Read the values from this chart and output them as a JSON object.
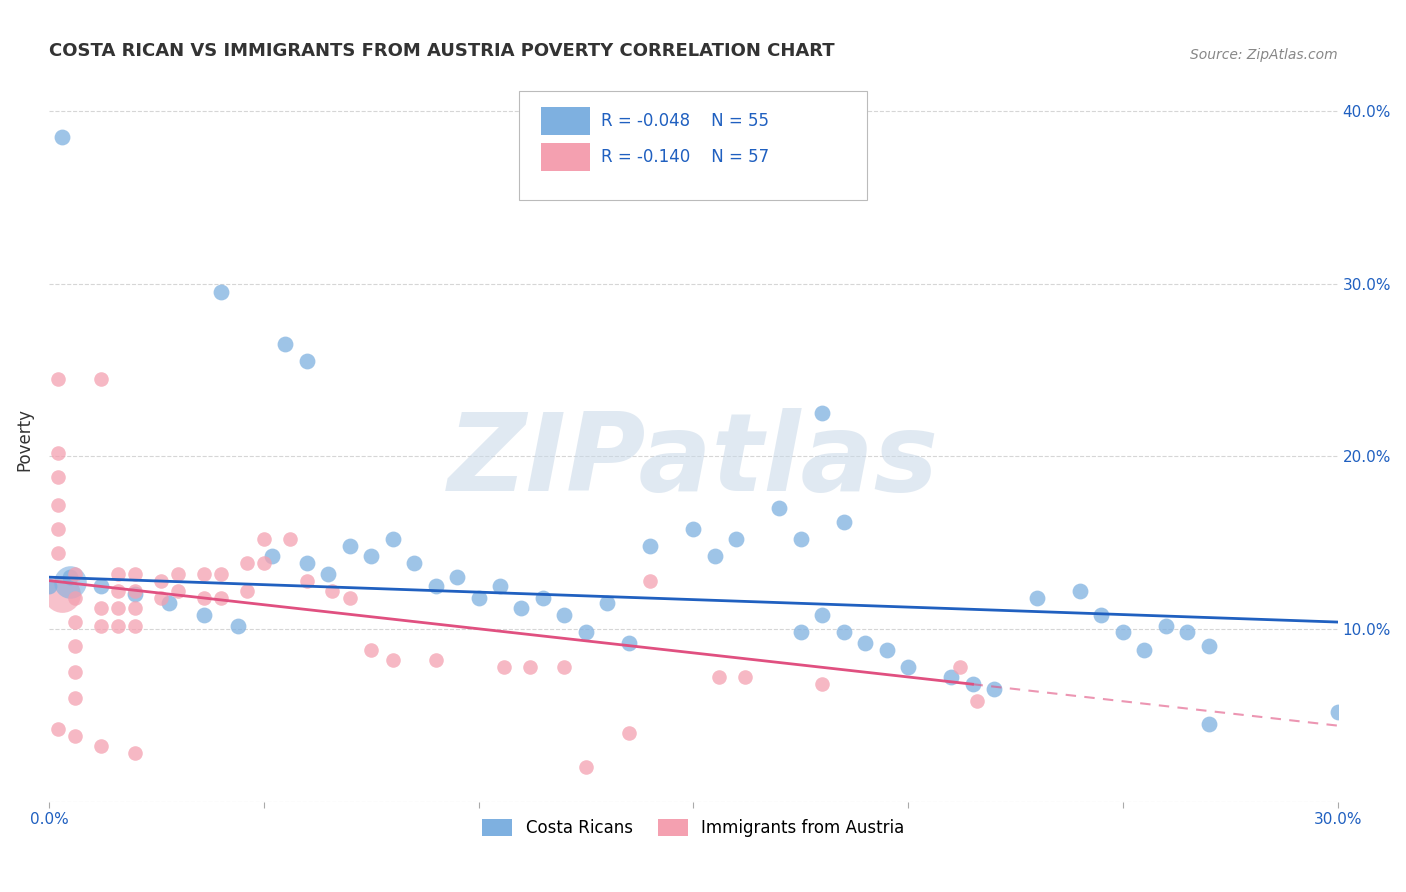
{
  "title": "COSTA RICAN VS IMMIGRANTS FROM AUSTRIA POVERTY CORRELATION CHART",
  "source": "Source: ZipAtlas.com",
  "ylabel": "Poverty",
  "xlim": [
    0.0,
    0.3
  ],
  "ylim": [
    0.0,
    0.42
  ],
  "blue_color": "#7EB0E0",
  "pink_color": "#F4A0B0",
  "blue_line_color": "#2060C0",
  "pink_line_color": "#E05080",
  "legend_label1": "Costa Ricans",
  "legend_label2": "Immigrants from Austria",
  "watermark": "ZIPatlas",
  "blue_scatter": [
    [
      0.003,
      0.385
    ],
    [
      0.04,
      0.295
    ],
    [
      0.055,
      0.265
    ],
    [
      0.06,
      0.255
    ],
    [
      0.005,
      0.13
    ],
    [
      0.012,
      0.125
    ],
    [
      0.02,
      0.12
    ],
    [
      0.028,
      0.115
    ],
    [
      0.036,
      0.108
    ],
    [
      0.044,
      0.102
    ],
    [
      0.052,
      0.142
    ],
    [
      0.06,
      0.138
    ],
    [
      0.065,
      0.132
    ],
    [
      0.07,
      0.148
    ],
    [
      0.075,
      0.142
    ],
    [
      0.08,
      0.152
    ],
    [
      0.085,
      0.138
    ],
    [
      0.09,
      0.125
    ],
    [
      0.095,
      0.13
    ],
    [
      0.1,
      0.118
    ],
    [
      0.105,
      0.125
    ],
    [
      0.11,
      0.112
    ],
    [
      0.115,
      0.118
    ],
    [
      0.12,
      0.108
    ],
    [
      0.13,
      0.115
    ],
    [
      0.14,
      0.148
    ],
    [
      0.15,
      0.158
    ],
    [
      0.155,
      0.142
    ],
    [
      0.16,
      0.152
    ],
    [
      0.17,
      0.17
    ],
    [
      0.175,
      0.152
    ],
    [
      0.18,
      0.225
    ],
    [
      0.185,
      0.162
    ],
    [
      0.185,
      0.098
    ],
    [
      0.19,
      0.092
    ],
    [
      0.195,
      0.088
    ],
    [
      0.2,
      0.078
    ],
    [
      0.21,
      0.072
    ],
    [
      0.215,
      0.068
    ],
    [
      0.22,
      0.065
    ],
    [
      0.23,
      0.118
    ],
    [
      0.24,
      0.122
    ],
    [
      0.245,
      0.108
    ],
    [
      0.25,
      0.098
    ],
    [
      0.255,
      0.088
    ],
    [
      0.26,
      0.102
    ],
    [
      0.265,
      0.098
    ],
    [
      0.27,
      0.09
    ],
    [
      0.18,
      0.108
    ],
    [
      0.175,
      0.098
    ],
    [
      0.125,
      0.098
    ],
    [
      0.135,
      0.092
    ],
    [
      0.27,
      0.045
    ],
    [
      0.3,
      0.052
    ],
    [
      0.0,
      0.125
    ]
  ],
  "blue_large_pts": [
    [
      0.005,
      0.127
    ]
  ],
  "pink_scatter": [
    [
      0.002,
      0.245
    ],
    [
      0.012,
      0.245
    ],
    [
      0.002,
      0.202
    ],
    [
      0.002,
      0.188
    ],
    [
      0.002,
      0.172
    ],
    [
      0.002,
      0.158
    ],
    [
      0.002,
      0.144
    ],
    [
      0.006,
      0.132
    ],
    [
      0.006,
      0.118
    ],
    [
      0.006,
      0.104
    ],
    [
      0.006,
      0.09
    ],
    [
      0.006,
      0.075
    ],
    [
      0.006,
      0.06
    ],
    [
      0.012,
      0.112
    ],
    [
      0.012,
      0.102
    ],
    [
      0.016,
      0.132
    ],
    [
      0.016,
      0.122
    ],
    [
      0.016,
      0.112
    ],
    [
      0.016,
      0.102
    ],
    [
      0.02,
      0.132
    ],
    [
      0.02,
      0.122
    ],
    [
      0.02,
      0.112
    ],
    [
      0.02,
      0.102
    ],
    [
      0.026,
      0.128
    ],
    [
      0.026,
      0.118
    ],
    [
      0.03,
      0.132
    ],
    [
      0.03,
      0.122
    ],
    [
      0.036,
      0.132
    ],
    [
      0.036,
      0.118
    ],
    [
      0.04,
      0.132
    ],
    [
      0.04,
      0.118
    ],
    [
      0.046,
      0.138
    ],
    [
      0.046,
      0.122
    ],
    [
      0.05,
      0.152
    ],
    [
      0.05,
      0.138
    ],
    [
      0.056,
      0.152
    ],
    [
      0.06,
      0.128
    ],
    [
      0.066,
      0.122
    ],
    [
      0.07,
      0.118
    ],
    [
      0.075,
      0.088
    ],
    [
      0.08,
      0.082
    ],
    [
      0.09,
      0.082
    ],
    [
      0.106,
      0.078
    ],
    [
      0.112,
      0.078
    ],
    [
      0.12,
      0.078
    ],
    [
      0.125,
      0.02
    ],
    [
      0.135,
      0.04
    ],
    [
      0.14,
      0.128
    ],
    [
      0.156,
      0.072
    ],
    [
      0.162,
      0.072
    ],
    [
      0.18,
      0.068
    ],
    [
      0.212,
      0.078
    ],
    [
      0.216,
      0.058
    ],
    [
      0.002,
      0.042
    ],
    [
      0.006,
      0.038
    ],
    [
      0.012,
      0.032
    ],
    [
      0.02,
      0.028
    ]
  ],
  "pink_large_pts": [
    [
      0.003,
      0.12
    ]
  ],
  "blue_trendline": [
    [
      0.0,
      0.13
    ],
    [
      0.3,
      0.104
    ]
  ],
  "pink_trendline_solid": [
    [
      0.0,
      0.128
    ],
    [
      0.215,
      0.068
    ]
  ],
  "pink_trendline_dashed": [
    [
      0.215,
      0.068
    ],
    [
      0.3,
      0.044
    ]
  ]
}
